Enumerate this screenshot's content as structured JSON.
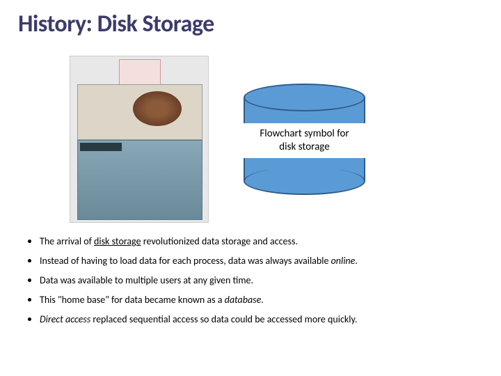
{
  "title": "History: Disk Storage",
  "cylinder": {
    "label_line1": "Flowchart symbol for",
    "label_line2": "disk storage",
    "fill_color": "#5b9bd5",
    "border_color": "#2e5b8a",
    "label_bg": "#ffffff"
  },
  "bullets": [
    {
      "pre": "The arrival of ",
      "term": "disk storage",
      "post": " revolutionized data storage and access.",
      "italicPost": false
    },
    {
      "pre": "Instead of having to load data for each process, data was always available ",
      "term": "online",
      "post": ".",
      "italicTerm": true
    },
    {
      "pre": "Data was available to multiple users at any given time.",
      "term": "",
      "post": ""
    },
    {
      "pre": "This \"home base\" for data became known as a ",
      "term": "database",
      "post": ".",
      "italicTerm": true
    },
    {
      "pre": "",
      "term": "Direct access",
      "post": " replaced sequential access so data could be accessed more quickly.",
      "italicTerm": true
    }
  ],
  "colors": {
    "title_color": "#3b3b6d",
    "text_color": "#000000",
    "background": "#ffffff"
  },
  "typography": {
    "title_fontsize": 34,
    "title_weight": 700,
    "body_fontsize": 14,
    "cylinder_label_fontsize": 15,
    "font_family": "Calibri"
  }
}
